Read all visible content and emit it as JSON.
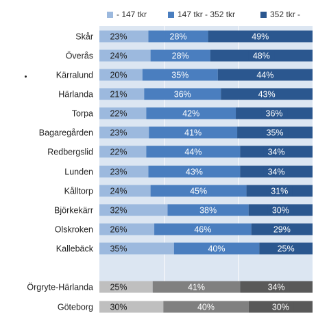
{
  "chart_data": {
    "type": "bar",
    "orientation": "horizontal",
    "stacked": true,
    "percent_stacked": true,
    "title": "",
    "xlabel": "",
    "ylabel": "",
    "xlim": [
      0,
      100
    ],
    "legend_position": "top",
    "categories": [
      "Skår",
      "Överås",
      "Kärralund",
      "Härlanda",
      "Torpa",
      "Bagaregården",
      "Redbergslid",
      "Lunden",
      "Kålltorp",
      "Björkekärr",
      "Olskroken",
      "Kallebäck",
      "",
      "Örgryte-Härlanda",
      "Göteborg"
    ],
    "series": [
      {
        "name": "- 147 tkr",
        "color": "#9cb9de",
        "values": [
          23,
          24,
          20,
          21,
          22,
          23,
          22,
          23,
          24,
          32,
          26,
          35,
          null,
          25,
          30
        ]
      },
      {
        "name": "147 tkr - 352 tkr",
        "color": "#4a7ebf",
        "values": [
          28,
          28,
          35,
          36,
          42,
          41,
          44,
          43,
          45,
          38,
          46,
          40,
          null,
          41,
          40
        ]
      },
      {
        "name": "352 tkr -",
        "color": "#2b578f",
        "values": [
          49,
          48,
          44,
          43,
          36,
          35,
          34,
          34,
          31,
          30,
          29,
          25,
          null,
          34,
          30
        ]
      }
    ],
    "summary_colors": [
      "#bfbfbf",
      "#808080",
      "#595959"
    ],
    "plot_background": "#dce6f2"
  }
}
